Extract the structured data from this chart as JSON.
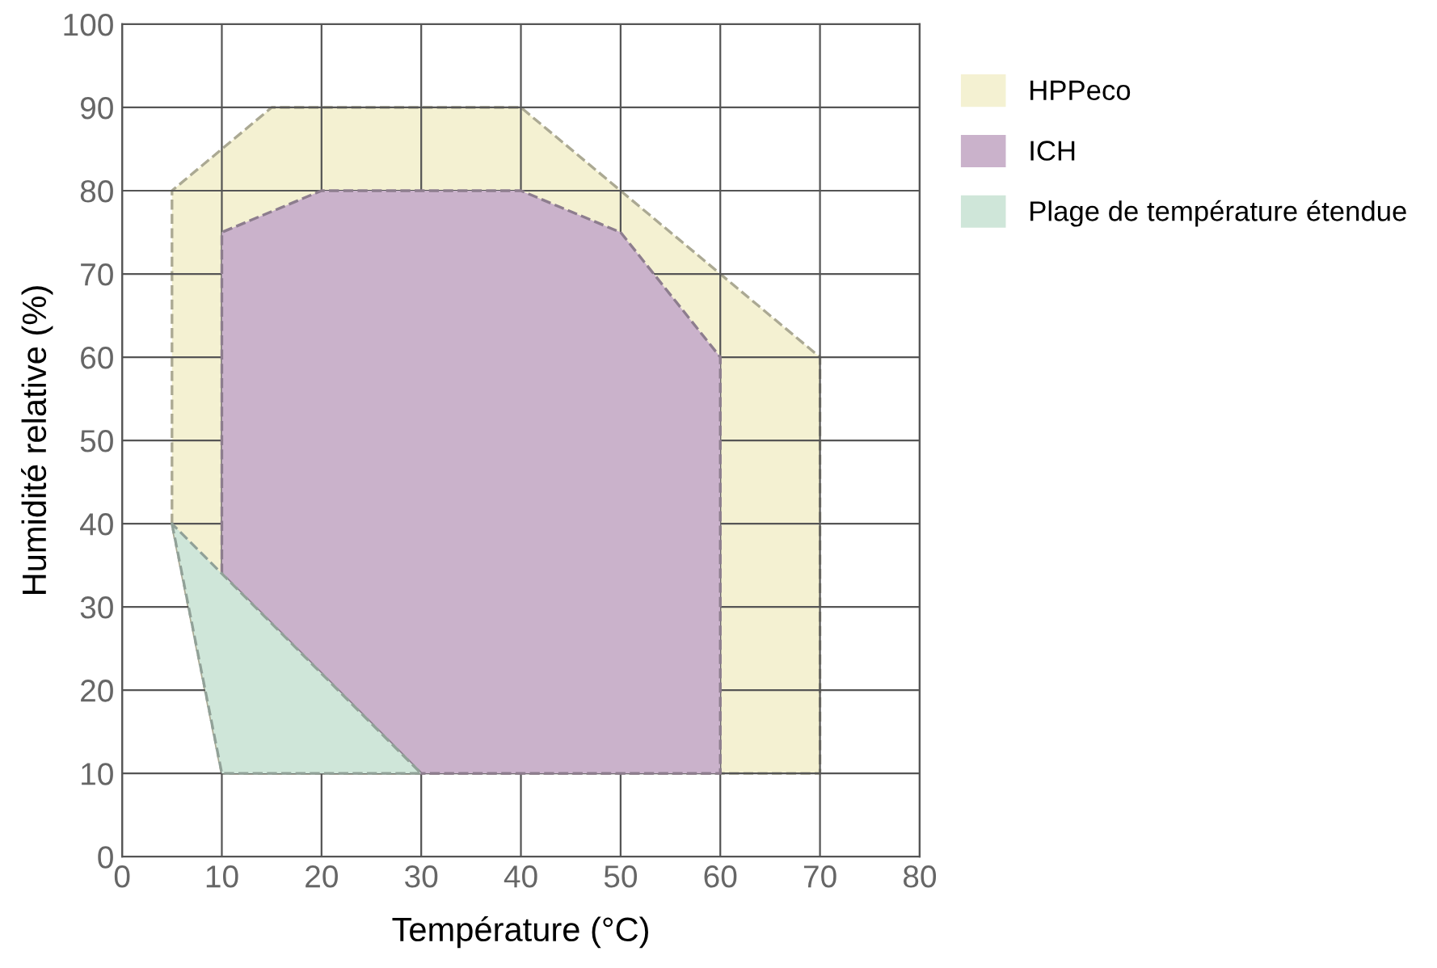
{
  "chart_data": {
    "type": "area",
    "xlabel": "Température (°C)",
    "ylabel": "Humidité relative (%)",
    "xlim": [
      0,
      80
    ],
    "xticks": [
      0,
      10,
      20,
      30,
      40,
      50,
      60,
      70,
      80
    ],
    "ylim": [
      0,
      100
    ],
    "yticks": [
      0,
      10,
      20,
      30,
      40,
      50,
      60,
      70,
      80,
      90,
      100
    ],
    "grid": true,
    "legend": "right",
    "line_style": "dashed",
    "series": [
      {
        "name": "HPPeco",
        "color": "#f4f1d2",
        "x": [
          5,
          5,
          15,
          40,
          70,
          70,
          10
        ],
        "values": [
          40,
          80,
          90,
          90,
          60,
          10,
          10
        ]
      },
      {
        "name": "ICH",
        "color": "#cab2cb",
        "x": [
          10,
          10,
          20,
          40,
          50,
          60,
          60,
          30
        ],
        "values": [
          34,
          75,
          80,
          80,
          75,
          60,
          10,
          10
        ]
      },
      {
        "name": "Plage de température étendue",
        "color": "#cfe6d9",
        "x": [
          5,
          10,
          30
        ],
        "values": [
          40,
          10,
          10
        ]
      }
    ]
  }
}
